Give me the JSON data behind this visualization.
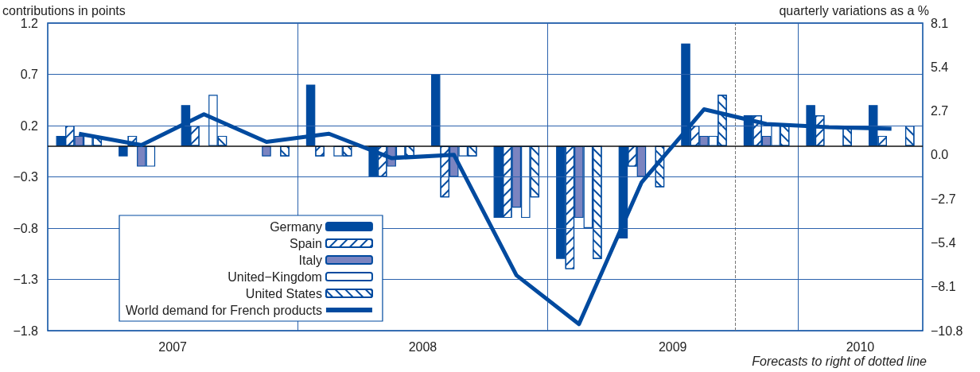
{
  "chart_data": {
    "type": "bar",
    "ylabel": "contributions in points",
    "y2label": "quarterly variations as a %",
    "x": [
      2007.125,
      2007.375,
      2007.625,
      2007.875,
      2008.125,
      2008.375,
      2008.625,
      2008.875,
      2009.125,
      2009.375,
      2009.625,
      2009.875,
      2010.125,
      2010.375
    ],
    "xlim": [
      2007,
      2010.5
    ],
    "xticks": [
      {
        "value": 2007.5,
        "label": "2007"
      },
      {
        "value": 2008.5,
        "label": "2008"
      },
      {
        "value": 2009.5,
        "label": "2009"
      },
      {
        "value": 2010.25,
        "label": "2010"
      }
    ],
    "ylim": [
      -1.8,
      1.2
    ],
    "yticks": [
      {
        "value": -1.8,
        "label": "−1.8"
      },
      {
        "value": -1.3,
        "label": "−1.3"
      },
      {
        "value": -0.8,
        "label": "−0.8"
      },
      {
        "value": -0.3,
        "label": "−0.3"
      },
      0.2,
      0.7,
      1.2
    ],
    "y2lim": [
      -10.8,
      8.1
    ],
    "y2ticks": [
      {
        "value": -10.8,
        "label": "−10.8"
      },
      {
        "value": -8.1,
        "label": "−8.1"
      },
      {
        "value": -5.4,
        "label": "−5.4"
      },
      {
        "value": -2.7,
        "label": "−2.7"
      },
      {
        "value": 0,
        "label": "0.0"
      },
      2.7,
      5.4,
      8.1
    ],
    "series": [
      {
        "name": "Germany",
        "color": "#004a9f",
        "values": [
          0.1,
          -0.1,
          0.4,
          0,
          0.6,
          -0.3,
          0.7,
          -0.7,
          -1.1,
          -0.9,
          1.0,
          0.3,
          0.4,
          0.4
        ]
      },
      {
        "name": "Spain",
        "color": "#ffffff",
        "values": [
          0.2,
          0.1,
          0.2,
          0,
          -0.1,
          -0.3,
          -0.5,
          -0.7,
          -1.2,
          -0.2,
          0.2,
          0.3,
          0.3,
          0.1
        ]
      },
      {
        "name": "Italy",
        "color": "#7b84c0",
        "values": [
          0.1,
          -0.2,
          0,
          -0.1,
          0,
          -0.2,
          -0.3,
          -0.6,
          -0.7,
          -0.3,
          0.1,
          0.1,
          0,
          0
        ]
      },
      {
        "name": "United−Kingdom",
        "color": "#ffffff",
        "values": [
          0.1,
          -0.2,
          0.5,
          0,
          -0.1,
          -0.1,
          -0.1,
          -0.7,
          -0.8,
          0,
          0.1,
          0.2,
          null,
          0
        ]
      },
      {
        "name": "United States",
        "color": "#ffffff",
        "values": [
          0.1,
          0,
          0.1,
          -0.1,
          -0.1,
          -0.1,
          -0.1,
          -0.5,
          -1.1,
          -0.4,
          0.5,
          0.2,
          0.2,
          0.2
        ]
      },
      {
        "name": "World demand for French products",
        "type": "line",
        "axis": "y2",
        "color": "#004a9f",
        "marker": "none",
        "values": [
          1.3,
          0.6,
          2.5,
          0.8,
          1.3,
          -0.2,
          0,
          -7.4,
          -10.4,
          -1.7,
          2.8,
          1.9,
          1.7,
          1.6
        ]
      }
    ],
    "ref_lines": [
      {
        "axis": "x",
        "value": 2008,
        "color": "#2b62ad"
      },
      {
        "axis": "x",
        "value": 2009,
        "color": "#2b62ad"
      },
      {
        "axis": "x",
        "value": 2010,
        "color": "#2b62ad"
      },
      {
        "axis": "x",
        "value": 2009.75,
        "color": "#777777",
        "line_style": "dashed"
      },
      {
        "axis": "y",
        "value": 0,
        "color": "#111111"
      }
    ],
    "grid": "y",
    "legend": "bottom left",
    "annotations": [
      "Forecasts to right of dotted line"
    ]
  }
}
